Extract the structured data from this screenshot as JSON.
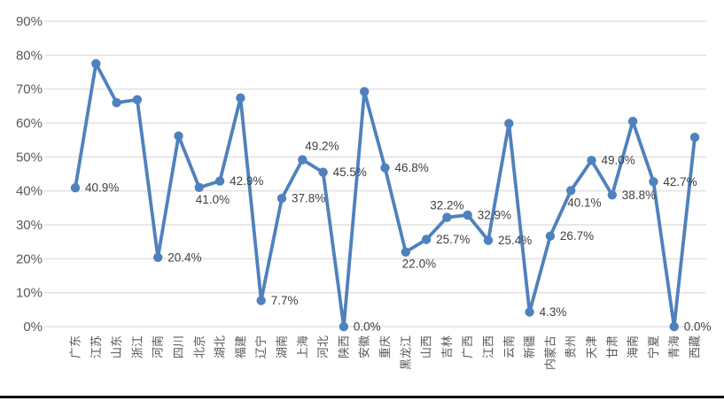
{
  "chart_data": {
    "type": "line",
    "title": "",
    "legend": "none",
    "grid": true,
    "ylim": [
      0,
      90
    ],
    "y_ticks": [
      "0%",
      "10%",
      "20%",
      "30%",
      "40%",
      "50%",
      "60%",
      "70%",
      "80%",
      "90%"
    ],
    "x_tick_label_rotation": "vertical-bottom-to-top",
    "categories": [
      "广东",
      "江苏",
      "山东",
      "浙江",
      "河南",
      "四川",
      "北京",
      "湖北",
      "福建",
      "辽宁",
      "湖南",
      "上海",
      "河北",
      "陕西",
      "安徽",
      "重庆",
      "黑龙江",
      "山西",
      "吉林",
      "广西",
      "江西",
      "云南",
      "新疆",
      "内蒙古",
      "贵州",
      "天津",
      "甘肃",
      "海南",
      "宁夏",
      "青海",
      "西藏"
    ],
    "series": [
      {
        "name": "",
        "values": [
          40.9,
          77.5,
          66.0,
          66.9,
          20.4,
          56.2,
          41.0,
          42.9,
          67.4,
          7.7,
          37.8,
          49.2,
          45.5,
          0.0,
          69.3,
          46.8,
          22.0,
          25.7,
          32.2,
          32.9,
          25.4,
          59.9,
          4.3,
          26.7,
          40.1,
          49.0,
          38.8,
          60.5,
          42.7,
          0.0,
          55.8
        ]
      }
    ],
    "data_labels": [
      "40.9%",
      null,
      null,
      null,
      "20.4%",
      null,
      "41.0%",
      "42.9%",
      null,
      "7.7%",
      "37.8%",
      "49.2%",
      "45.5%",
      "0.0%",
      null,
      "46.8%",
      "22.0%",
      "25.7%",
      "32.2%",
      "32.9%",
      "25.4%",
      null,
      "4.3%",
      "26.7%",
      "40.1%",
      "49.0%",
      "38.8%",
      null,
      "42.7%",
      "0.0%",
      null
    ],
    "data_label_positions": [
      "right",
      null,
      null,
      null,
      "right",
      null,
      "below",
      "right",
      null,
      "right",
      "right",
      "above-right",
      "right",
      "right",
      null,
      "right",
      "below",
      "right",
      "above",
      "right",
      "right",
      null,
      "right",
      "right",
      "below",
      "right",
      "right",
      null,
      "right",
      "right",
      null
    ],
    "marker": "circle",
    "colors": {
      "line": "#4F81BD",
      "marker": "#4F81BD",
      "grid": "#D9D9D9",
      "axis_text": "#595959",
      "data_label_text": "#3F3F3F",
      "background": "#FFFFFF",
      "bottom_rule": "#000000"
    }
  }
}
